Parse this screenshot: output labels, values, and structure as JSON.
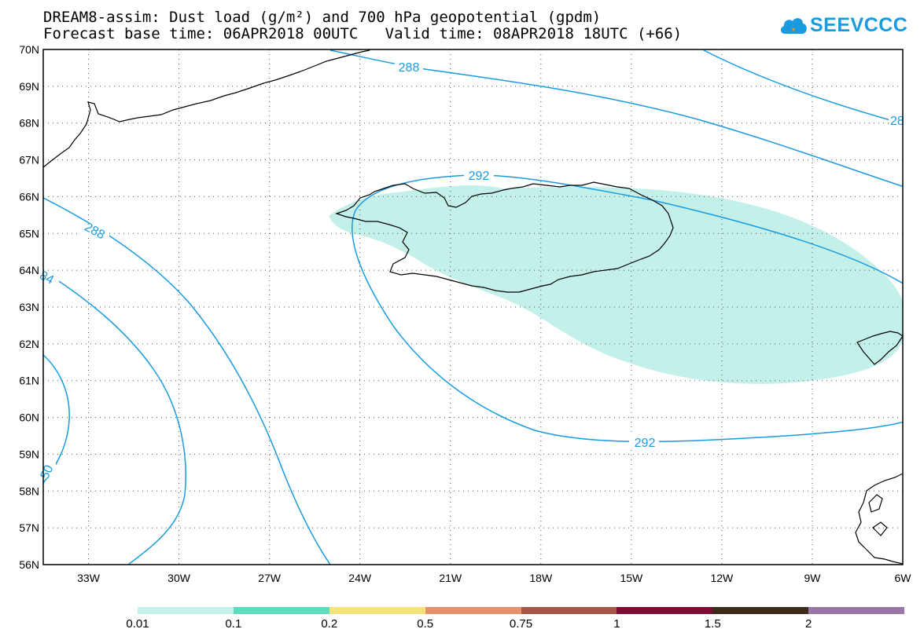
{
  "title": {
    "line1": "DREAM8-assim: Dust load (g/m²) and 700 hPa geopotential (gpdm)",
    "line2": "Forecast base time: 06APR2018 00UTC   Valid time: 08APR2018 18UTC (+66)"
  },
  "brand": {
    "name": "SEEVCCC",
    "icon": "cloud-logo-icon",
    "color": "#1a9be0"
  },
  "map": {
    "lon_range": [
      -34.5,
      -6
    ],
    "lat_range": [
      56,
      70
    ],
    "lon_ticks": [
      "33W",
      "30W",
      "27W",
      "24W",
      "21W",
      "18W",
      "15W",
      "12W",
      "9W",
      "6W"
    ],
    "lat_ticks": [
      "70N",
      "69N",
      "68N",
      "67N",
      "66N",
      "65N",
      "64N",
      "63N",
      "62N",
      "61N",
      "60N",
      "59N",
      "58N",
      "57N",
      "56N"
    ],
    "grid": "dotted",
    "contour_color": "#1a9be0",
    "contour_labels": [
      "288",
      "28",
      "292",
      "288",
      "84",
      "292",
      "50"
    ],
    "dust_fill_color": "#c4f0ea"
  },
  "legend": {
    "colors": [
      "#c4f0ea",
      "#5fdcbc",
      "#f5e27a",
      "#e8906a",
      "#a85545",
      "#7c0d35",
      "#3d2a18",
      "#9a76a8"
    ],
    "labels": [
      "0.01",
      "0.1",
      "0.2",
      "0.5",
      "0.75",
      "1",
      "1.5",
      "2"
    ]
  }
}
